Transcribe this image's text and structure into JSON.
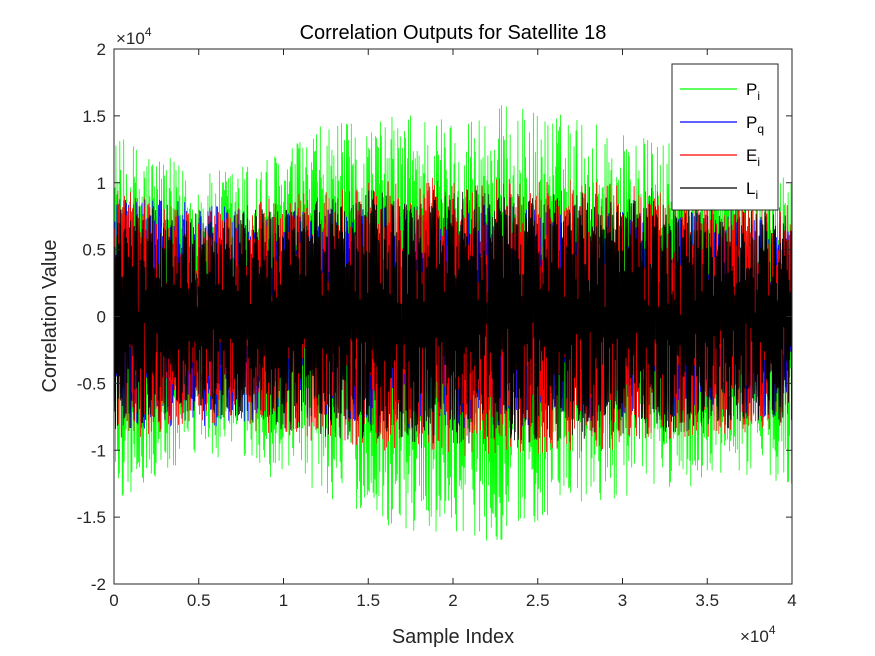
{
  "chart_data": {
    "type": "line",
    "title": "Correlation Outputs for Satellite 18",
    "xlabel": "Sample Index",
    "ylabel": "Correlation Value",
    "xlim": [
      0,
      40000
    ],
    "ylim": [
      -20000,
      20000
    ],
    "x_exponent": "×10",
    "x_exponent_power": "4",
    "y_exponent": "×10",
    "y_exponent_power": "4",
    "xticks": [
      0,
      5000,
      10000,
      15000,
      20000,
      25000,
      30000,
      35000,
      40000
    ],
    "xtick_labels": [
      "0",
      "0.5",
      "1",
      "1.5",
      "2",
      "2.5",
      "3",
      "3.5",
      "4"
    ],
    "yticks": [
      -20000,
      -15000,
      -10000,
      -5000,
      0,
      5000,
      10000,
      15000,
      20000
    ],
    "ytick_labels": [
      "-2",
      "-1.5",
      "-1",
      "-0.5",
      "0",
      "0.5",
      "1",
      "1.5",
      "2"
    ],
    "grid": false,
    "legend_position": "top-right",
    "n_samples": 40000,
    "series": [
      {
        "name": "P",
        "subscript": "i",
        "color": "#00ff00",
        "envelope_x": [
          0,
          2500,
          5000,
          7500,
          10000,
          12500,
          15000,
          17500,
          20000,
          22500,
          25000,
          27500,
          30000,
          32500,
          35000,
          37500,
          40000
        ],
        "envelope_max": [
          13500,
          12500,
          10500,
          11500,
          12500,
          14500,
          14500,
          15500,
          15000,
          16000,
          15500,
          15000,
          14000,
          13000,
          13000,
          12500,
          12000
        ],
        "envelope_min": [
          -14000,
          -12500,
          -10500,
          -11000,
          -12500,
          -13500,
          -15000,
          -16500,
          -16000,
          -17000,
          -15500,
          -14500,
          -13500,
          -13000,
          -12500,
          -12000,
          -12500
        ]
      },
      {
        "name": "P",
        "subscript": "q",
        "color": "#0000ff",
        "envelope_x": [
          0,
          10000,
          20000,
          30000,
          40000
        ],
        "envelope_max": [
          9000,
          8000,
          8500,
          8000,
          7500
        ],
        "envelope_min": [
          -8500,
          -8000,
          -8500,
          -8000,
          -7500
        ]
      },
      {
        "name": "E",
        "subscript": "i",
        "color": "#ff0000",
        "envelope_x": [
          0,
          5000,
          10000,
          15000,
          20000,
          25000,
          30000,
          35000,
          40000
        ],
        "envelope_max": [
          10000,
          8000,
          9000,
          10000,
          10500,
          10500,
          10000,
          9000,
          8500
        ],
        "envelope_min": [
          -10000,
          -8000,
          -9000,
          -10000,
          -10500,
          -10500,
          -10000,
          -9000,
          -8500
        ]
      },
      {
        "name": "L",
        "subscript": "i",
        "color": "#000000",
        "envelope_x": [
          0,
          5000,
          10000,
          15000,
          20000,
          25000,
          30000,
          35000,
          40000
        ],
        "envelope_max": [
          9000,
          7000,
          8500,
          9500,
          9500,
          9500,
          9000,
          8500,
          8000
        ],
        "envelope_min": [
          -9000,
          -7000,
          -8500,
          -9500,
          -9500,
          -9500,
          -9000,
          -8500,
          -8000
        ]
      }
    ]
  }
}
